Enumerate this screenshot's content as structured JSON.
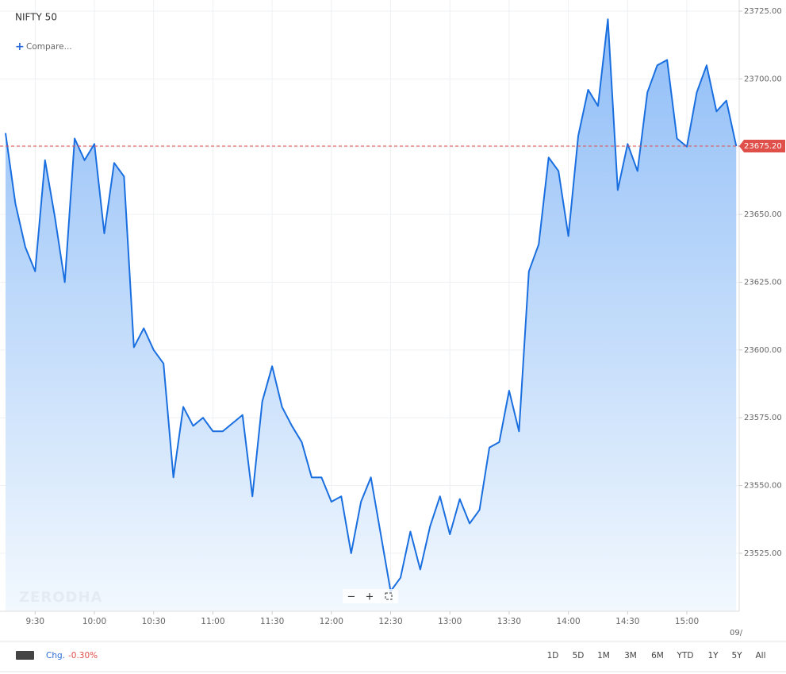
{
  "chart_data": {
    "type": "area",
    "title": "NIFTY 50",
    "x": [
      555,
      560,
      565,
      570,
      575,
      580,
      585,
      590,
      595,
      600,
      605,
      610,
      615,
      620,
      625,
      630,
      635,
      640,
      645,
      650,
      655,
      660,
      665,
      670,
      675,
      680,
      685,
      690,
      695,
      700,
      705,
      710,
      715,
      720,
      725,
      730,
      735,
      740,
      745,
      750,
      755,
      760,
      765,
      770,
      775,
      780,
      785,
      790,
      795,
      800,
      805,
      810,
      815,
      820,
      825,
      830,
      835,
      840,
      845,
      850,
      855,
      860,
      865,
      870,
      875,
      880,
      885,
      890,
      895,
      900,
      905,
      910,
      915,
      920,
      925
    ],
    "series": [
      {
        "name": "NIFTY 50",
        "color": "#1a6fe0",
        "values": [
          23680,
          23654,
          23638,
          23629,
          23670,
          23649,
          23625,
          23678,
          23670,
          23676,
          23643,
          23669,
          23664,
          23601,
          23608,
          23600,
          23595,
          23553,
          23579,
          23572,
          23575,
          23570,
          23570,
          23573,
          23576,
          23546,
          23581,
          23594,
          23579,
          23572,
          23566,
          23553,
          23553,
          23544,
          23546,
          23525,
          23544,
          23553,
          23532,
          23511,
          23516,
          23533,
          23519,
          23535,
          23546,
          23532,
          23545,
          23536,
          23541,
          23564,
          23566,
          23585,
          23570,
          23629,
          23639,
          23671,
          23666,
          23642,
          23679,
          23696,
          23690,
          23722,
          23659,
          23676,
          23666,
          23695,
          23705,
          23707,
          23678,
          23675,
          23695,
          23705,
          23688,
          23692,
          23675.2
        ]
      }
    ],
    "xlim": [
      552.2,
      926.5
    ],
    "xticks": [
      {
        "value": 570,
        "label": "9:30"
      },
      {
        "value": 600,
        "label": "10:00"
      },
      {
        "value": 630,
        "label": "10:30"
      },
      {
        "value": 660,
        "label": "11:00"
      },
      {
        "value": 690,
        "label": "11:30"
      },
      {
        "value": 720,
        "label": "12:00"
      },
      {
        "value": 750,
        "label": "12:30"
      },
      {
        "value": 780,
        "label": "13:00"
      },
      {
        "value": 810,
        "label": "13:30"
      },
      {
        "value": 840,
        "label": "14:00"
      },
      {
        "value": 870,
        "label": "14:30"
      },
      {
        "value": 900,
        "label": "15:00"
      }
    ],
    "ylim": [
      23503.6,
      23729.1
    ],
    "yticks": [
      {
        "value": 23525,
        "label": "23525.00"
      },
      {
        "value": 23550,
        "label": "23550.00"
      },
      {
        "value": 23575,
        "label": "23575.00"
      },
      {
        "value": 23600,
        "label": "23600.00"
      },
      {
        "value": 23625,
        "label": "23625.00"
      },
      {
        "value": 23650,
        "label": "23650.00"
      },
      {
        "value": 23675,
        "label": "23675.00"
      },
      {
        "value": 23700,
        "label": "23700.00"
      },
      {
        "value": 23725,
        "label": "23725.00"
      }
    ],
    "last_price": {
      "value": 23675.2,
      "label": "23675.20",
      "color": "#e0504a"
    },
    "grid": true,
    "date_label": "09/"
  },
  "compare": "Compare...",
  "watermark": "ZERODHA",
  "toolbar": {
    "change_label": "Chg.",
    "change_value": "-0.30%",
    "ranges": [
      "1D",
      "5D",
      "1M",
      "3M",
      "6M",
      "YTD",
      "1Y",
      "5Y",
      "All"
    ]
  }
}
